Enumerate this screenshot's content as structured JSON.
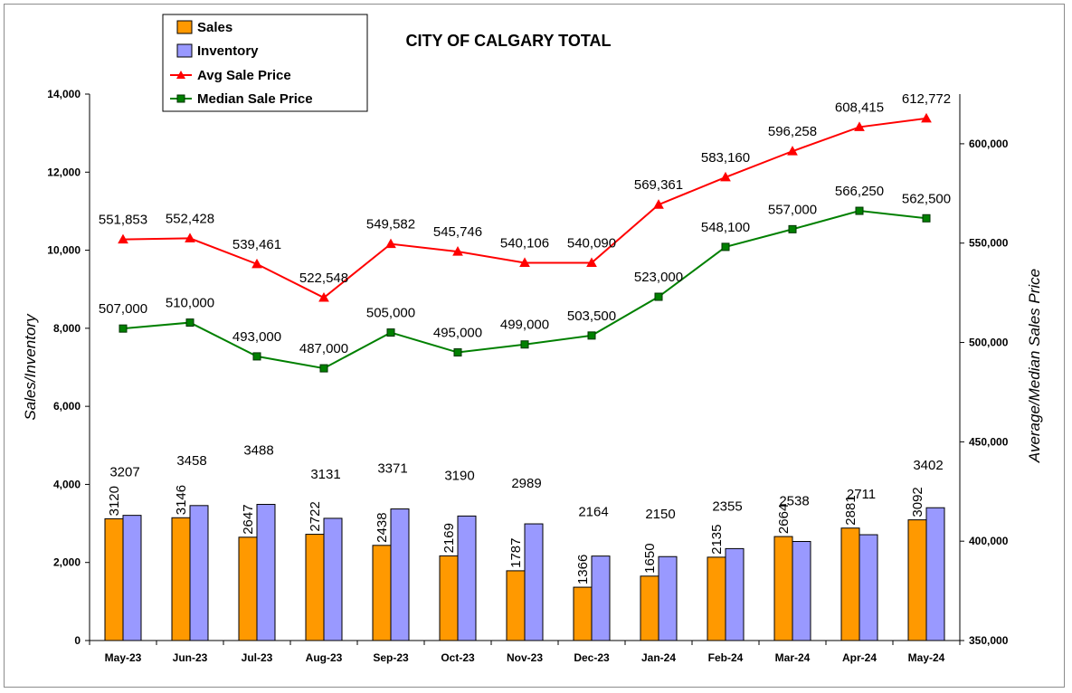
{
  "chart_data": {
    "type": "bar",
    "title": "CITY OF CALGARY TOTAL",
    "categories": [
      "May-23",
      "Jun-23",
      "Jul-23",
      "Aug-23",
      "Sep-23",
      "Oct-23",
      "Nov-23",
      "Dec-23",
      "Jan-24",
      "Feb-24",
      "Mar-24",
      "Apr-24",
      "May-24"
    ],
    "y_left": {
      "label": "Sales/Inventory",
      "range": [
        0,
        14000
      ],
      "ticks": [
        "0",
        "2,000",
        "4,000",
        "6,000",
        "8,000",
        "10,000",
        "12,000",
        "14,000"
      ],
      "tick_values": [
        0,
        2000,
        4000,
        6000,
        8000,
        10000,
        12000,
        14000
      ]
    },
    "y_right": {
      "label": "Average/Median Sales Price",
      "range": [
        350000,
        625000
      ],
      "ticks": [
        "350,000",
        "400,000",
        "450,000",
        "500,000",
        "550,000",
        "600,000"
      ],
      "tick_values": [
        350000,
        400000,
        450000,
        500000,
        550000,
        600000
      ]
    },
    "series": [
      {
        "name": "Sales",
        "kind": "bar",
        "axis": "left",
        "color": "#FF9900",
        "values": [
          3120,
          3146,
          2647,
          2722,
          2438,
          2169,
          1787,
          1366,
          1650,
          2135,
          2664,
          2881,
          3092
        ],
        "labels": [
          "3120",
          "3146",
          "2647",
          "2722",
          "2438",
          "2169",
          "1787",
          "1366",
          "1650",
          "2135",
          "2664",
          "2881",
          "3092"
        ]
      },
      {
        "name": "Inventory",
        "kind": "bar",
        "axis": "left",
        "color": "#9999FF",
        "values": [
          3207,
          3458,
          3488,
          3131,
          3371,
          3190,
          2989,
          2164,
          2150,
          2355,
          2538,
          2711,
          3402
        ],
        "labels": [
          "3207",
          "3458",
          "3488",
          "3131",
          "3371",
          "3190",
          "2989",
          "2164",
          "2150",
          "2355",
          "2538",
          "2711",
          "3402"
        ]
      },
      {
        "name": "Avg Sale Price",
        "kind": "line",
        "marker": "triangle",
        "axis": "right",
        "color": "#FF0000",
        "values": [
          551853,
          552428,
          539461,
          522548,
          549582,
          545746,
          540106,
          540090,
          569361,
          583160,
          596258,
          608415,
          612772
        ],
        "labels": [
          "551,853",
          "552,428",
          "539,461",
          "522,548",
          "549,582",
          "545,746",
          "540,106",
          "540,090",
          "569,361",
          "583,160",
          "596,258",
          "608,415",
          "612,772"
        ]
      },
      {
        "name": "Median Sale Price",
        "kind": "line",
        "marker": "square",
        "axis": "right",
        "color": "#008000",
        "values": [
          507000,
          510000,
          493000,
          487000,
          505000,
          495000,
          499000,
          503500,
          523000,
          548100,
          557000,
          566250,
          562500
        ],
        "labels": [
          "507,000",
          "510,000",
          "493,000",
          "487,000",
          "505,000",
          "495,000",
          "499,000",
          "503,500",
          "523,000",
          "548,100",
          "557,000",
          "566,250",
          "562,500"
        ]
      }
    ],
    "grid": false,
    "legend_position": "top-left"
  }
}
